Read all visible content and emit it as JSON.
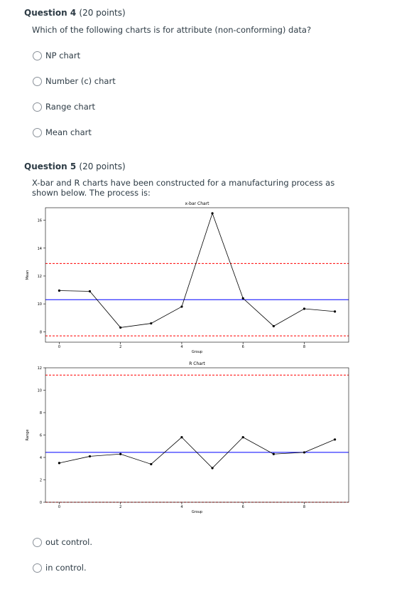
{
  "questions": [
    {
      "number": "Question 4",
      "points": "(20 points)",
      "text": "Which of the following charts is for attribute (non-conforming) data?",
      "options": [
        "NP chart",
        "Number (c) chart",
        "Range chart",
        "Mean chart"
      ]
    },
    {
      "number": "Question 5",
      "points": "(20 points)",
      "text": "X-bar and R charts have been constructed for a manufacturing process as shown below. The process is:",
      "options": [
        "out control.",
        "in control."
      ]
    }
  ],
  "chart_data": [
    {
      "type": "line",
      "title": "x-bar Chart",
      "x_label": "Group",
      "y_label": "Mean",
      "x": [
        0,
        1,
        2,
        3,
        4,
        5,
        6,
        7,
        8,
        9
      ],
      "series": [
        {
          "color": "#000000",
          "values": [
            10.95,
            10.9,
            8.3,
            8.6,
            9.8,
            16.5,
            10.4,
            8.4,
            9.65,
            9.45
          ]
        }
      ],
      "center_line": {
        "value": 10.3,
        "color": "#0000ff"
      },
      "control_limits": {
        "values": [
          12.9,
          7.7
        ],
        "color": "#ff0000"
      },
      "xlim": [
        -0.45,
        9.45
      ],
      "ylim": [
        7.25,
        16.9
      ],
      "xticks": [
        0,
        2,
        4,
        6,
        8
      ],
      "yticks": [
        8,
        10,
        12,
        14,
        16
      ]
    },
    {
      "type": "line",
      "title": "R Chart",
      "x_label": "Group",
      "y_label": "Range",
      "x": [
        0,
        1,
        2,
        3,
        4,
        5,
        6,
        7,
        8,
        9
      ],
      "series": [
        {
          "color": "#000000",
          "values": [
            3.5,
            4.1,
            4.3,
            3.4,
            5.8,
            3.05,
            5.8,
            4.3,
            4.45,
            5.6
          ]
        }
      ],
      "center_line": {
        "value": 4.45,
        "color": "#0000ff"
      },
      "control_limits": {
        "values": [
          11.35,
          0
        ],
        "color": "#ff0000"
      },
      "xlim": [
        -0.45,
        9.45
      ],
      "ylim": [
        0,
        12
      ],
      "xticks": [
        0,
        2,
        4,
        6,
        8
      ],
      "yticks": [
        0,
        2,
        4,
        6,
        8,
        10,
        12
      ]
    }
  ]
}
